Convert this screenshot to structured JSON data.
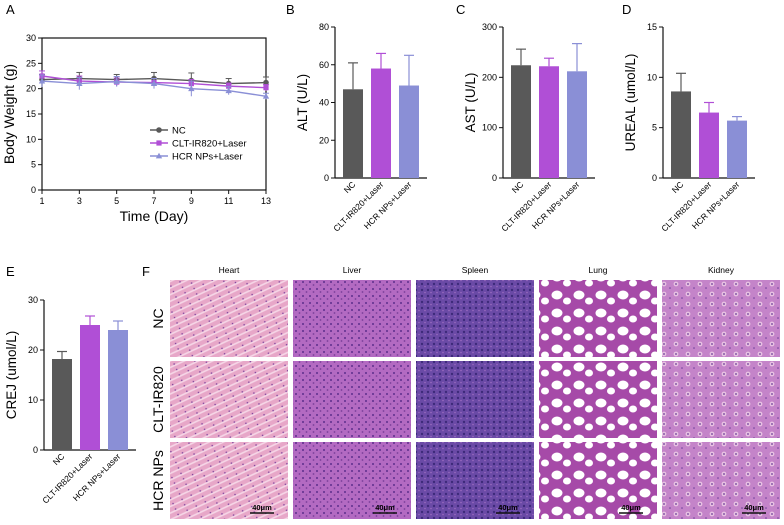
{
  "panel_letters": {
    "A": "A",
    "B": "B",
    "C": "C",
    "D": "D",
    "E": "E",
    "F": "F"
  },
  "colors": {
    "NC": "#595959",
    "CLT": "#b04fd6",
    "HCR": "#8a8fd6",
    "axis": "#111111"
  },
  "histology": {
    "columns": [
      "Heart",
      "Liver",
      "Spleen",
      "Lung",
      "Kidney"
    ],
    "rows": [
      "NC",
      "CLT-IR820",
      "HCR NPs"
    ],
    "scale_bar": "40μm"
  },
  "chart_data": [
    {
      "panel": "A",
      "type": "line",
      "xlabel": "Time (Day)",
      "ylabel": "Body Weight (g)",
      "xlim": [
        1,
        13
      ],
      "ylim": [
        0,
        30
      ],
      "x": [
        1,
        3,
        5,
        7,
        9,
        11,
        13
      ],
      "xticks": [
        "1",
        "3",
        "5",
        "7",
        "9",
        "11",
        "13"
      ],
      "yticks": [
        "0",
        "5",
        "10",
        "15",
        "20",
        "25",
        "30"
      ],
      "legend_position": "bottom-left inside",
      "series": [
        {
          "name": "NC",
          "values": [
            21.8,
            22.0,
            21.8,
            22.0,
            21.6,
            21.0,
            21.2
          ],
          "err": [
            1.0,
            1.2,
            1.0,
            1.2,
            1.5,
            1.0,
            1.1
          ],
          "marker": "circle"
        },
        {
          "name": "CLT-IR820+Laser",
          "values": [
            22.5,
            21.5,
            21.3,
            21.2,
            21.0,
            20.5,
            20.2
          ],
          "err": [
            1.0,
            1.0,
            0.8,
            0.8,
            0.8,
            0.6,
            0.6
          ],
          "marker": "square"
        },
        {
          "name": "HCR NPs+Laser",
          "values": [
            21.5,
            21.0,
            21.4,
            21.0,
            20.0,
            19.6,
            18.5
          ],
          "err": [
            1.2,
            1.2,
            1.0,
            1.0,
            1.5,
            0.8,
            0.6
          ],
          "marker": "triangle"
        }
      ]
    },
    {
      "panel": "B",
      "type": "bar",
      "ylabel": "ALT (U/L)",
      "ylim": [
        0,
        80
      ],
      "yticks": [
        "0",
        "20",
        "40",
        "60",
        "80"
      ],
      "categories": [
        "NC",
        "CLT-IR820+Laser",
        "HCR NPs+Laser"
      ],
      "values": [
        47,
        58,
        49
      ],
      "err": [
        14,
        8,
        16
      ]
    },
    {
      "panel": "C",
      "type": "bar",
      "ylabel": "AST (U/L)",
      "ylim": [
        0,
        300
      ],
      "yticks": [
        "0",
        "100",
        "200",
        "300"
      ],
      "categories": [
        "NC",
        "CLT-IR820+Laser",
        "HCR NPs+Laser"
      ],
      "values": [
        224,
        222,
        212
      ],
      "err": [
        32,
        16,
        55
      ]
    },
    {
      "panel": "D",
      "type": "bar",
      "ylabel": "UREAL (umol/L)",
      "ylim": [
        0,
        15
      ],
      "yticks": [
        "0",
        "5",
        "10",
        "15"
      ],
      "categories": [
        "NC",
        "CLT-IR820+Laser",
        "HCR NPs+Laser"
      ],
      "values": [
        8.6,
        6.5,
        5.7
      ],
      "err": [
        1.8,
        1.0,
        0.4
      ]
    },
    {
      "panel": "E",
      "type": "bar",
      "ylabel": "CREJ (umol/L)",
      "ylim": [
        0,
        30
      ],
      "yticks": [
        "0",
        "10",
        "20",
        "30"
      ],
      "categories": [
        "NC",
        "CLT-IR820+Laser",
        "HCR NPs+Laser"
      ],
      "values": [
        18.2,
        25.0,
        24.0
      ],
      "err": [
        1.5,
        1.8,
        1.8
      ]
    }
  ]
}
